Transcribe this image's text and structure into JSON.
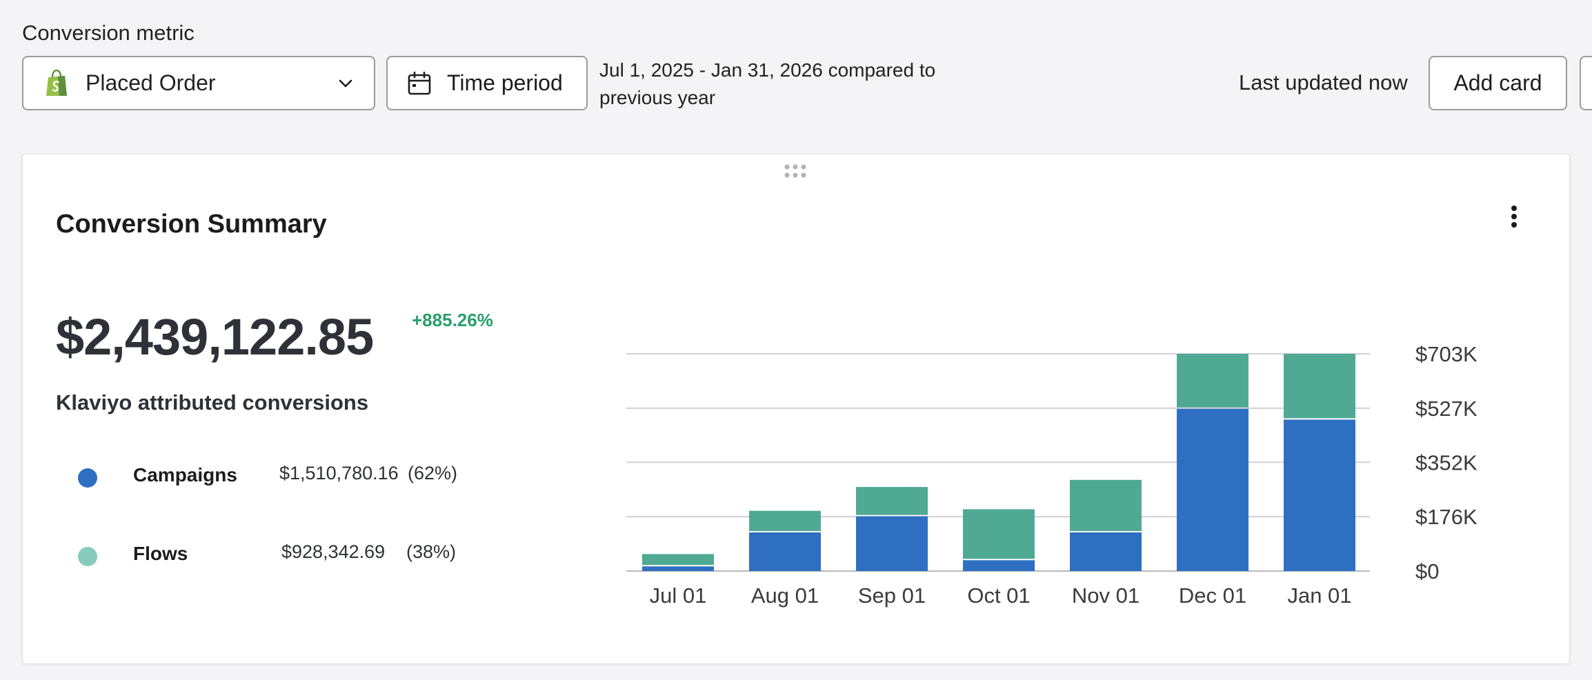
{
  "toolbar": {
    "metric_label": "Conversion metric",
    "metric_value": "Placed Order",
    "metric_icon": "shopify-bag-icon",
    "time_period_label": "Time period",
    "date_range_line1": "Jul 1, 2025 - Jan 31, 2026 compared to",
    "date_range_line2": "previous year",
    "last_updated": "Last updated now",
    "add_card_label": "Add card"
  },
  "card": {
    "title": "Conversion Summary",
    "total": "$2,439,122.85",
    "change": "+885.26%",
    "subtitle": "Klaviyo attributed conversions",
    "legend": [
      {
        "name": "Campaigns",
        "amount": "$1,510,780.16",
        "share": "(62%)",
        "color": "#2e6fc1"
      },
      {
        "name": "Flows",
        "amount": "$928,342.69",
        "share": "(38%)",
        "color": "#86cbbb"
      }
    ]
  },
  "colors": {
    "campaigns_bar": "#2e6fc1",
    "flows_bar": "#50aa93",
    "positive_change": "#26a06b",
    "shopify_green": "#95bf47"
  },
  "chart_data": {
    "type": "bar",
    "stacked": true,
    "categories": [
      "Jul 01",
      "Aug 01",
      "Sep 01",
      "Oct 01",
      "Nov 01",
      "Dec 01",
      "Jan 01"
    ],
    "series": [
      {
        "name": "Campaigns",
        "color": "#2e6fc1",
        "values": [
          15000,
          125000,
          177000,
          35000,
          125000,
          525000,
          490000
        ]
      },
      {
        "name": "Flows",
        "color": "#50aa93",
        "values": [
          40000,
          70000,
          95000,
          165000,
          170000,
          178000,
          213000
        ]
      }
    ],
    "y_ticks": [
      "$703K",
      "$527K",
      "$352K",
      "$176K",
      "$0"
    ],
    "y_tick_values": [
      703000,
      527000,
      352000,
      176000,
      0
    ],
    "ylim": [
      0,
      703000
    ],
    "y_axis_side": "right",
    "grid": true
  }
}
